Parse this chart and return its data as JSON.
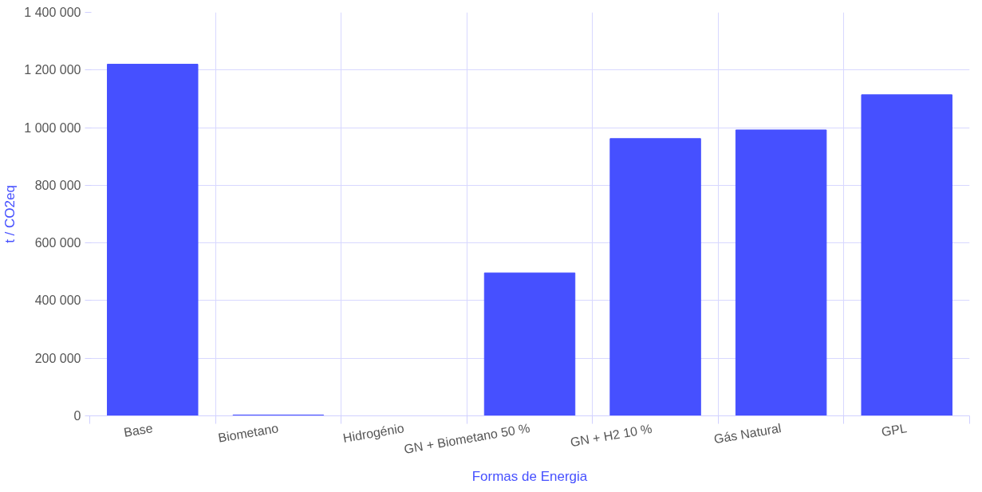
{
  "chart_data": {
    "type": "bar",
    "xlabel": "Formas de Energia",
    "ylabel": "t / CO2eq",
    "categories": [
      "Base",
      "Biometano",
      "Hidrogénio",
      "GN + Biometano 50 %",
      "GN + H2  10 %",
      "Gás Natural",
      "GPL"
    ],
    "values": [
      1220000,
      3000,
      0,
      496000,
      962000,
      992000,
      1114000
    ],
    "color": "#4650ff",
    "ylim": [
      0,
      1400000
    ],
    "yticks": [
      {
        "value": 0,
        "label": "0"
      },
      {
        "value": 200000,
        "label": "200 000"
      },
      {
        "value": 400000,
        "label": "400 000"
      },
      {
        "value": 600000,
        "label": "600 000"
      },
      {
        "value": 800000,
        "label": "800 000"
      },
      {
        "value": 1000000,
        "label": "1 000 000"
      },
      {
        "value": 1200000,
        "label": "1 200 000"
      },
      {
        "value": 1400000,
        "label": "1 400 000"
      }
    ],
    "grid": true
  }
}
